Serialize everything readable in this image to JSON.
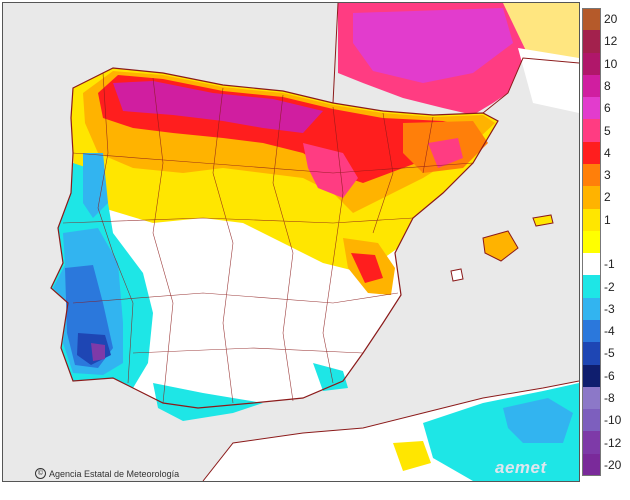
{
  "credit_text": "Agencia Estatal de Meteorología",
  "credit_logo": "©",
  "watermark_text": "aemet",
  "legend": {
    "items": [
      {
        "label": "20",
        "color": "#b55a2a"
      },
      {
        "label": "12",
        "color": "#a3214d"
      },
      {
        "label": "10",
        "color": "#b0176a"
      },
      {
        "label": "8",
        "color": "#d01ea0"
      },
      {
        "label": "6",
        "color": "#e23ccd"
      },
      {
        "label": "5",
        "color": "#ff3c82"
      },
      {
        "label": "4",
        "color": "#ff1e1e"
      },
      {
        "label": "3",
        "color": "#ff7f0a"
      },
      {
        "label": "2",
        "color": "#ffb300"
      },
      {
        "label": "1",
        "color": "#ffe600"
      },
      {
        "label": "",
        "color": "#ffff00"
      },
      {
        "label": "-1",
        "color": "#ffffff"
      },
      {
        "label": "-2",
        "color": "#1ee6e6"
      },
      {
        "label": "-3",
        "color": "#32b4f0"
      },
      {
        "label": "-4",
        "color": "#2b78dc"
      },
      {
        "label": "-5",
        "color": "#1e46b4"
      },
      {
        "label": "-6",
        "color": "#0f1e6e"
      },
      {
        "label": "-8",
        "color": "#8c78c8"
      },
      {
        "label": "-10",
        "color": "#7d5fbe"
      },
      {
        "label": "-12",
        "color": "#7e3aa8"
      },
      {
        "label": "-20",
        "color": "#7a2a9a"
      }
    ]
  }
}
